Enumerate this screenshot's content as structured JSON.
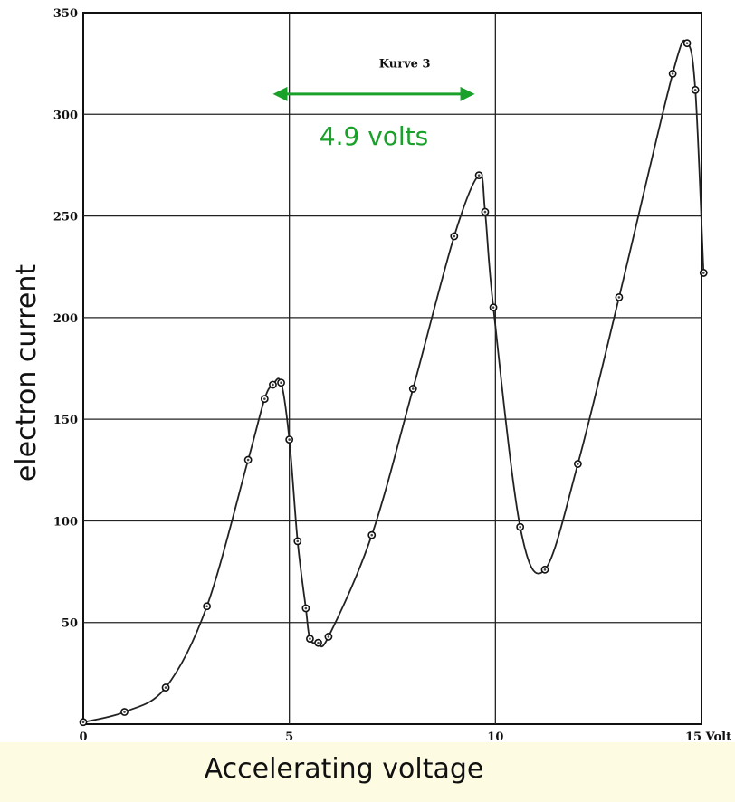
{
  "chart_data": {
    "type": "line",
    "title": "",
    "xlabel": "Accelerating voltage",
    "ylabel": "electron current",
    "xlim": [
      0,
      15
    ],
    "ylim": [
      0,
      350
    ],
    "grid": true,
    "x_ticks": [
      "0",
      "5",
      "10",
      "15 Volt"
    ],
    "y_ticks": [
      "50",
      "100",
      "150",
      "200",
      "250",
      "300",
      "350"
    ],
    "series": [
      {
        "x": [
          0,
          1,
          2,
          3,
          4,
          4.4,
          4.6,
          4.8,
          5.0,
          5.2,
          5.4,
          5.5,
          5.7,
          5.95,
          7,
          8,
          9,
          9.6,
          9.75,
          9.95,
          10.6,
          11.2,
          12,
          13,
          14.3,
          14.65,
          14.85,
          15.05
        ],
        "y": [
          1,
          6,
          18,
          58,
          130,
          160,
          167,
          168,
          140,
          90,
          57,
          42,
          40,
          43,
          93,
          165,
          240,
          270,
          252,
          205,
          97,
          76,
          128,
          210,
          320,
          335,
          312,
          222
        ],
        "marker": "circle",
        "color": "#222222"
      }
    ],
    "annotations": [
      {
        "text": "Kurve 3",
        "x": 7.8,
        "y": 323
      },
      {
        "text": "4.9 volts",
        "x_start": 4.6,
        "x_end": 9.5,
        "y": 310,
        "color": "#1aa12a",
        "arrow": "double"
      }
    ]
  }
}
